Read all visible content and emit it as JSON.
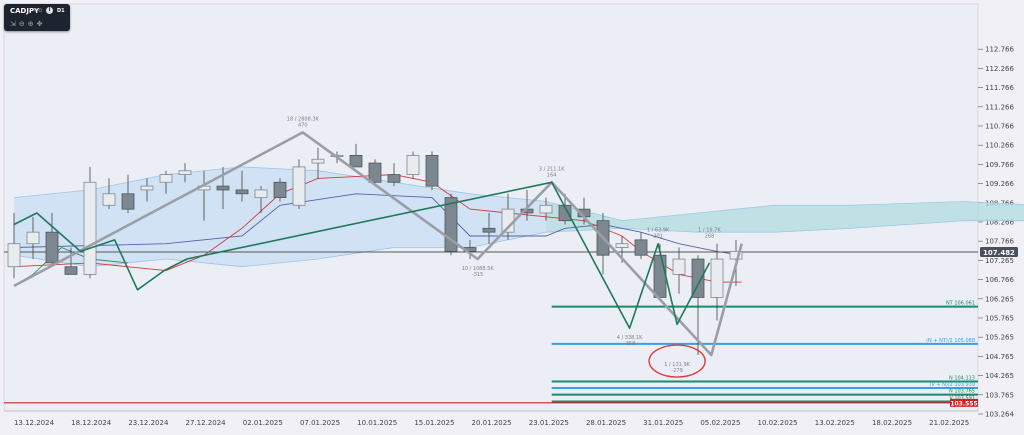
{
  "toolbar": {
    "symbol": "CADJPY",
    "symbol_type": "CFD",
    "info_icon": "info-icon",
    "timeframe": "D1",
    "tools": [
      "fit-icon",
      "zoom-out-icon",
      "zoom-in-icon",
      "move-icon"
    ]
  },
  "chart_data": {
    "type": "candlestick",
    "symbol": "CADJPY",
    "timeframe": "D1",
    "y_ticks": [
      "112.766",
      "112.266",
      "111.766",
      "111.266",
      "110.766",
      "110.266",
      "109.766",
      "109.266",
      "108.766",
      "108.266",
      "107.766",
      "107.265",
      "106.766",
      "106.265",
      "105.765",
      "105.265",
      "104.765",
      "104.265",
      "103.765",
      "103.264"
    ],
    "ylim": [
      103.264,
      113.266
    ],
    "x_labels": [
      "13.12.2024",
      "18.12.2024",
      "23.12.2024",
      "27.12.2024",
      "02.01.2025",
      "07.01.2025",
      "10.01.2025",
      "15.01.2025",
      "20.01.2025",
      "23.01.2025",
      "28.01.2025",
      "31.01.2025",
      "05.02.2025",
      "10.02.2025",
      "13.02.2025",
      "18.02.2025",
      "21.02.2025"
    ],
    "current_price": "107.482",
    "current_price_value": 107.482,
    "candles": [
      {
        "o": 107.1,
        "h": 108.5,
        "l": 106.8,
        "c": 107.7
      },
      {
        "o": 107.7,
        "h": 108.4,
        "l": 107.3,
        "c": 108.0
      },
      {
        "o": 108.0,
        "h": 108.5,
        "l": 107.1,
        "c": 107.2
      },
      {
        "o": 107.1,
        "h": 107.6,
        "l": 106.9,
        "c": 106.9
      },
      {
        "o": 106.9,
        "h": 109.7,
        "l": 106.8,
        "c": 109.3
      },
      {
        "o": 108.7,
        "h": 109.4,
        "l": 108.6,
        "c": 109.0
      },
      {
        "o": 109.0,
        "h": 109.5,
        "l": 108.5,
        "c": 108.6
      },
      {
        "o": 109.1,
        "h": 109.4,
        "l": 108.8,
        "c": 109.2
      },
      {
        "o": 109.3,
        "h": 109.6,
        "l": 109.0,
        "c": 109.5
      },
      {
        "o": 109.5,
        "h": 109.8,
        "l": 109.3,
        "c": 109.6
      },
      {
        "o": 109.1,
        "h": 109.6,
        "l": 108.3,
        "c": 109.2
      },
      {
        "o": 109.2,
        "h": 109.7,
        "l": 108.6,
        "c": 109.1
      },
      {
        "o": 109.1,
        "h": 109.6,
        "l": 108.8,
        "c": 109.0
      },
      {
        "o": 108.9,
        "h": 109.2,
        "l": 108.5,
        "c": 109.1
      },
      {
        "o": 109.3,
        "h": 109.4,
        "l": 108.8,
        "c": 108.9
      },
      {
        "o": 108.7,
        "h": 109.9,
        "l": 108.6,
        "c": 109.7
      },
      {
        "o": 109.8,
        "h": 110.2,
        "l": 109.4,
        "c": 109.9
      },
      {
        "o": 110.0,
        "h": 110.1,
        "l": 109.8,
        "c": 110.0
      },
      {
        "o": 110.0,
        "h": 110.3,
        "l": 109.7,
        "c": 109.7
      },
      {
        "o": 109.8,
        "h": 109.9,
        "l": 109.2,
        "c": 109.3
      },
      {
        "o": 109.5,
        "h": 109.8,
        "l": 109.2,
        "c": 109.3
      },
      {
        "o": 109.5,
        "h": 110.1,
        "l": 109.4,
        "c": 110.0
      },
      {
        "o": 110.0,
        "h": 110.1,
        "l": 109.1,
        "c": 109.2
      },
      {
        "o": 108.9,
        "h": 109.0,
        "l": 107.4,
        "c": 107.5
      },
      {
        "o": 107.6,
        "h": 107.8,
        "l": 107.3,
        "c": 107.5
      },
      {
        "o": 108.1,
        "h": 108.5,
        "l": 107.7,
        "c": 108.0
      },
      {
        "o": 108.0,
        "h": 109.0,
        "l": 107.8,
        "c": 108.6
      },
      {
        "o": 108.6,
        "h": 109.1,
        "l": 108.3,
        "c": 108.5
      },
      {
        "o": 108.5,
        "h": 108.9,
        "l": 108.3,
        "c": 108.7
      },
      {
        "o": 108.7,
        "h": 109.0,
        "l": 108.2,
        "c": 108.3
      },
      {
        "o": 108.6,
        "h": 108.9,
        "l": 108.2,
        "c": 108.4
      },
      {
        "o": 108.3,
        "h": 108.5,
        "l": 106.9,
        "c": 107.4
      },
      {
        "o": 107.6,
        "h": 107.9,
        "l": 107.2,
        "c": 107.7
      },
      {
        "o": 107.8,
        "h": 108.0,
        "l": 107.3,
        "c": 107.4
      },
      {
        "o": 107.4,
        "h": 107.7,
        "l": 106.3,
        "c": 106.3
      },
      {
        "o": 106.9,
        "h": 107.6,
        "l": 106.4,
        "c": 107.3
      },
      {
        "o": 107.3,
        "h": 107.4,
        "l": 104.8,
        "c": 106.3
      },
      {
        "o": 106.3,
        "h": 107.7,
        "l": 105.7,
        "c": 107.3
      },
      {
        "o": 107.3,
        "h": 107.8,
        "l": 106.6,
        "c": 107.5
      }
    ],
    "zigzag_gray": [
      {
        "x": 0,
        "y": 106.6
      },
      {
        "x": 15.2,
        "y": 110.6
      },
      {
        "x": 24.4,
        "y": 107.3
      },
      {
        "x": 28.3,
        "y": 109.3
      },
      {
        "x": 36.7,
        "y": 104.8
      },
      {
        "x": 38.3,
        "y": 107.7
      }
    ],
    "zigzag_green": [
      {
        "x": 0,
        "y": 108.2
      },
      {
        "x": 1.2,
        "y": 108.5
      },
      {
        "x": 3.5,
        "y": 107.5
      },
      {
        "x": 5.3,
        "y": 107.8
      },
      {
        "x": 6.5,
        "y": 106.5
      },
      {
        "x": 7.9,
        "y": 107.0
      },
      {
        "x": 9.1,
        "y": 107.3
      },
      {
        "x": 28.3,
        "y": 109.3
      },
      {
        "x": 32.4,
        "y": 105.5
      },
      {
        "x": 33.9,
        "y": 107.7
      },
      {
        "x": 34.9,
        "y": 105.6
      },
      {
        "x": 36.6,
        "y": 107.2
      }
    ],
    "tenkan": [
      {
        "x": 0,
        "y": 107.1
      },
      {
        "x": 4,
        "y": 107.2
      },
      {
        "x": 8,
        "y": 107.0
      },
      {
        "x": 10,
        "y": 107.4
      },
      {
        "x": 12,
        "y": 108.1
      },
      {
        "x": 14,
        "y": 109.0
      },
      {
        "x": 16,
        "y": 109.4
      },
      {
        "x": 20,
        "y": 109.5
      },
      {
        "x": 22,
        "y": 109.3
      },
      {
        "x": 24,
        "y": 108.6
      },
      {
        "x": 26,
        "y": 108.5
      },
      {
        "x": 28,
        "y": 108.4
      },
      {
        "x": 30,
        "y": 108.3
      },
      {
        "x": 32,
        "y": 107.9
      },
      {
        "x": 33,
        "y": 107.5
      },
      {
        "x": 35,
        "y": 106.9
      },
      {
        "x": 37,
        "y": 106.7
      },
      {
        "x": 38.3,
        "y": 106.7
      }
    ],
    "kijun": [
      {
        "x": 0,
        "y": 107.6
      },
      {
        "x": 8,
        "y": 107.7
      },
      {
        "x": 12,
        "y": 107.9
      },
      {
        "x": 14,
        "y": 108.7
      },
      {
        "x": 18,
        "y": 109.0
      },
      {
        "x": 22,
        "y": 108.9
      },
      {
        "x": 24,
        "y": 107.9
      },
      {
        "x": 28,
        "y": 107.9
      },
      {
        "x": 29,
        "y": 108.1
      },
      {
        "x": 31,
        "y": 108.2
      },
      {
        "x": 33,
        "y": 108.0
      },
      {
        "x": 35,
        "y": 107.7
      },
      {
        "x": 37,
        "y": 107.5
      },
      {
        "x": 38.3,
        "y": 107.4
      }
    ],
    "chikou": [
      {
        "x": 0,
        "y": 106.6
      },
      {
        "x": 1,
        "y": 106.9
      },
      {
        "x": 2.5,
        "y": 107.6
      },
      {
        "x": 4,
        "y": 107.3
      },
      {
        "x": 6,
        "y": 107.2
      }
    ],
    "cloud": {
      "span_a": [
        {
          "x": 0,
          "y": 108.9
        },
        {
          "x": 4,
          "y": 109.1
        },
        {
          "x": 8,
          "y": 109.5
        },
        {
          "x": 12,
          "y": 109.7
        },
        {
          "x": 16,
          "y": 109.6
        },
        {
          "x": 20,
          "y": 109.3
        },
        {
          "x": 24,
          "y": 109.0
        },
        {
          "x": 28,
          "y": 108.8
        },
        {
          "x": 32,
          "y": 108.3
        },
        {
          "x": 36,
          "y": 108.5
        },
        {
          "x": 40,
          "y": 108.7
        },
        {
          "x": 44,
          "y": 108.7
        },
        {
          "x": 50,
          "y": 108.8
        },
        {
          "x": 54,
          "y": 108.7
        }
      ],
      "span_b": [
        {
          "x": 0,
          "y": 107.4
        },
        {
          "x": 4,
          "y": 107.1
        },
        {
          "x": 8,
          "y": 107.3
        },
        {
          "x": 12,
          "y": 107.1
        },
        {
          "x": 16,
          "y": 107.3
        },
        {
          "x": 20,
          "y": 107.6
        },
        {
          "x": 24,
          "y": 107.6
        },
        {
          "x": 28,
          "y": 108.0
        },
        {
          "x": 32,
          "y": 108.1
        },
        {
          "x": 36,
          "y": 108.0
        },
        {
          "x": 40,
          "y": 108.0
        },
        {
          "x": 44,
          "y": 108.1
        },
        {
          "x": 50,
          "y": 108.3
        },
        {
          "x": 54,
          "y": 108.3
        }
      ]
    },
    "zigzag_labels": [
      {
        "x": 15.2,
        "y": 110.6,
        "lines": [
          "18 / 2808.3K",
          "470"
        ],
        "pos": "above"
      },
      {
        "x": 24.4,
        "y": 107.3,
        "lines": [
          "10 / 1088.5K",
          "-315"
        ],
        "pos": "below"
      },
      {
        "x": 28.3,
        "y": 109.3,
        "lines": [
          "3 / 211.1K",
          "164"
        ],
        "pos": "above"
      },
      {
        "x": 32.4,
        "y": 105.5,
        "lines": [
          "4 / 338.1K",
          "-358"
        ],
        "pos": "below"
      },
      {
        "x": 33.9,
        "y": 107.7,
        "lines": [
          "1 / 63.9K",
          "201"
        ],
        "pos": "above"
      },
      {
        "x": 34.9,
        "y": 104.8,
        "lines": [
          "1 / 131.9K",
          "-279"
        ],
        "pos": "below"
      },
      {
        "x": 36.6,
        "y": 107.7,
        "lines": [
          "1 / 19.7K",
          "268"
        ],
        "pos": "above"
      }
    ],
    "levels": [
      {
        "label": "NT 106.061",
        "value": 106.06,
        "color": "#1a8a6a",
        "start": 28.3
      },
      {
        "label": "(N + NT)/2 105.088",
        "value": 105.09,
        "color": "#3a9ee8",
        "start": 28.3
      },
      {
        "label": "N 104.113",
        "value": 104.11,
        "color": "#1a8a6a",
        "start": 28.3
      },
      {
        "label": "(V + N)/2 103.939",
        "value": 103.94,
        "color": "#3a9ee8",
        "start": 28.3
      },
      {
        "label": "N 103.765",
        "value": 103.77,
        "color": "#1a8a6a",
        "start": 28.3
      },
      {
        "label": "V 103.591",
        "value": 103.59,
        "color": "#1a8a6a",
        "start": 28.3
      }
    ],
    "red_level": {
      "label": "103.555",
      "value": 103.555,
      "color": "#d02020"
    },
    "highlight": {
      "x": 34.9,
      "y": 104.8
    }
  }
}
